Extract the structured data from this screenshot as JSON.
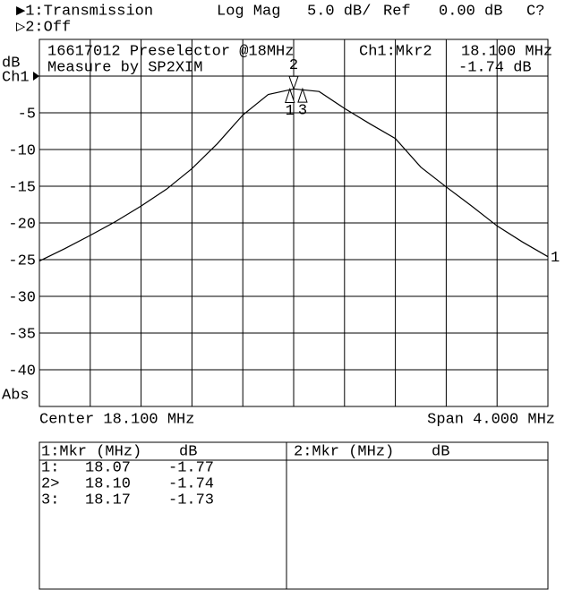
{
  "header": {
    "channel1": "▶1:Transmission",
    "format": "Log Mag",
    "scale": "5.0 dB/",
    "ref_label": "Ref",
    "ref_value": "0.00 dB",
    "status": "C?",
    "channel2": "▷2:Off"
  },
  "chart_data": {
    "type": "line",
    "title": "16617012 Preselector @18MHz",
    "subtitle": "Measure by SP2XIM",
    "active_marker": {
      "label": "Ch1:Mkr2",
      "frequency": "18.100 MHz",
      "value": "-1.74 dB"
    },
    "y_unit": "dB",
    "channel": "Ch1",
    "y_mode": "Abs",
    "center": "Center 18.100 MHz",
    "span": "Span 4.000 MHz",
    "ref_level": 0,
    "xlim": [
      16.1,
      20.1
    ],
    "ylim": [
      -45,
      5
    ],
    "yticks": [
      -5,
      -10,
      -15,
      -20,
      -25,
      -30,
      -35,
      -40
    ],
    "grid": true,
    "x": [
      16.1,
      16.3,
      16.5,
      16.7,
      16.9,
      17.1,
      17.3,
      17.5,
      17.7,
      17.9,
      18.1,
      18.3,
      18.5,
      18.7,
      18.9,
      19.1,
      19.3,
      19.5,
      19.7,
      19.9,
      20.1
    ],
    "series": [
      {
        "name": "1",
        "color": "#000000",
        "values": [
          -25.2,
          -23.5,
          -21.7,
          -19.8,
          -17.7,
          -15.4,
          -12.6,
          -9.2,
          -5.3,
          -2.5,
          -1.74,
          -2.1,
          -4.4,
          -6.5,
          -8.5,
          -12.4,
          -15.1,
          -17.7,
          -20.4,
          -22.6,
          -24.6
        ]
      }
    ],
    "markers": {
      "names": [
        "1",
        "2",
        "3"
      ],
      "active": "2",
      "x": [
        18.07,
        18.1,
        18.17
      ],
      "x_labels": [
        "18.07",
        "18.10",
        "18.17"
      ],
      "values": [
        -1.77,
        -1.74,
        -1.73
      ]
    }
  },
  "marker_table": {
    "panel1": {
      "title": "1:Mkr (MHz)",
      "unit": "dB"
    },
    "panel2": {
      "title": "2:Mkr (MHz)",
      "unit": "dB"
    },
    "row_labels": [
      "1:",
      "2>",
      "3:"
    ]
  }
}
